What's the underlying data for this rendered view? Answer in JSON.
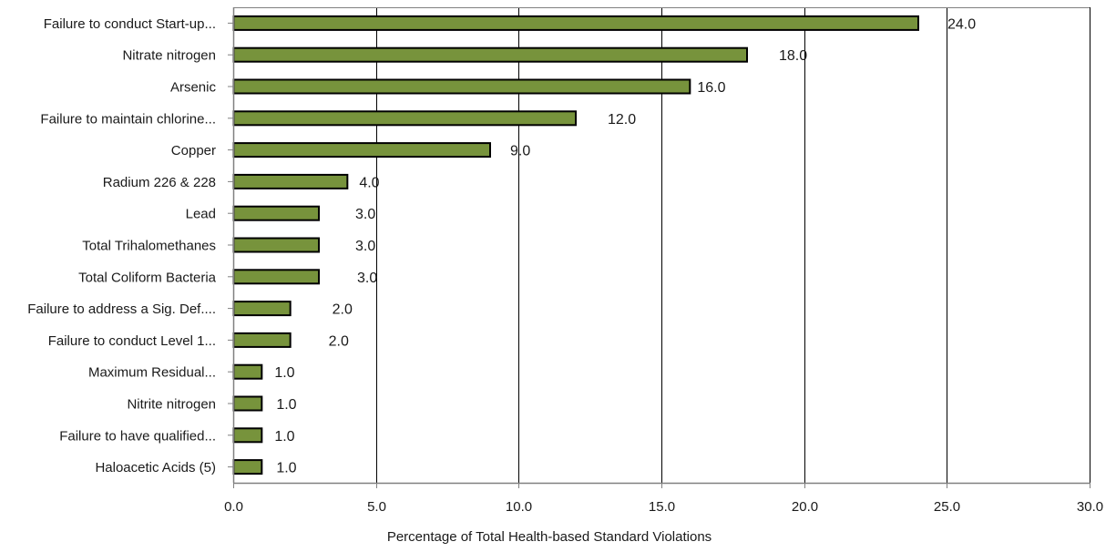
{
  "chart_data": {
    "type": "bar",
    "orientation": "horizontal",
    "categories": [
      "Failure to conduct Start-up...",
      "Nitrate nitrogen",
      "Arsenic",
      "Failure to maintain chlorine...",
      "Copper",
      "Radium 226 & 228",
      "Lead",
      "Total Trihalomethanes",
      "Total Coliform Bacteria",
      "Failure to address a Sig. Def....",
      "Failure to conduct Level 1...",
      "Maximum Residual...",
      "Nitrite nitrogen",
      "Failure to have qualified...",
      "Haloacetic Acids (5)"
    ],
    "values": [
      24.0,
      18.0,
      16.0,
      12.0,
      9.0,
      4.0,
      3.0,
      3.0,
      3.0,
      2.0,
      2.0,
      1.0,
      1.0,
      1.0,
      1.0
    ],
    "value_labels": [
      "24.0",
      "18.0",
      "16.0",
      "12.0",
      "9.0",
      "4.0",
      "3.0",
      "3.0",
      "3.0",
      "2.0",
      "2.0",
      "1.0",
      "1.0",
      "1.0",
      "1.0"
    ],
    "xlabel": "Percentage of Total Health-based Standard Violations",
    "xlim": [
      0,
      30
    ],
    "xticks": [
      0,
      5,
      10,
      15,
      20,
      25,
      30
    ],
    "xtick_labels": [
      "0.0",
      "5.0",
      "10.0",
      "15.0",
      "20.0",
      "25.0",
      "30.0"
    ],
    "grid": "vertical",
    "legend": "none",
    "colors": {
      "bar_fill": "#77933c",
      "bar_stroke": "#000000",
      "gridline": "#000000",
      "axis": "#808080",
      "text": "#1a1a1a"
    }
  }
}
